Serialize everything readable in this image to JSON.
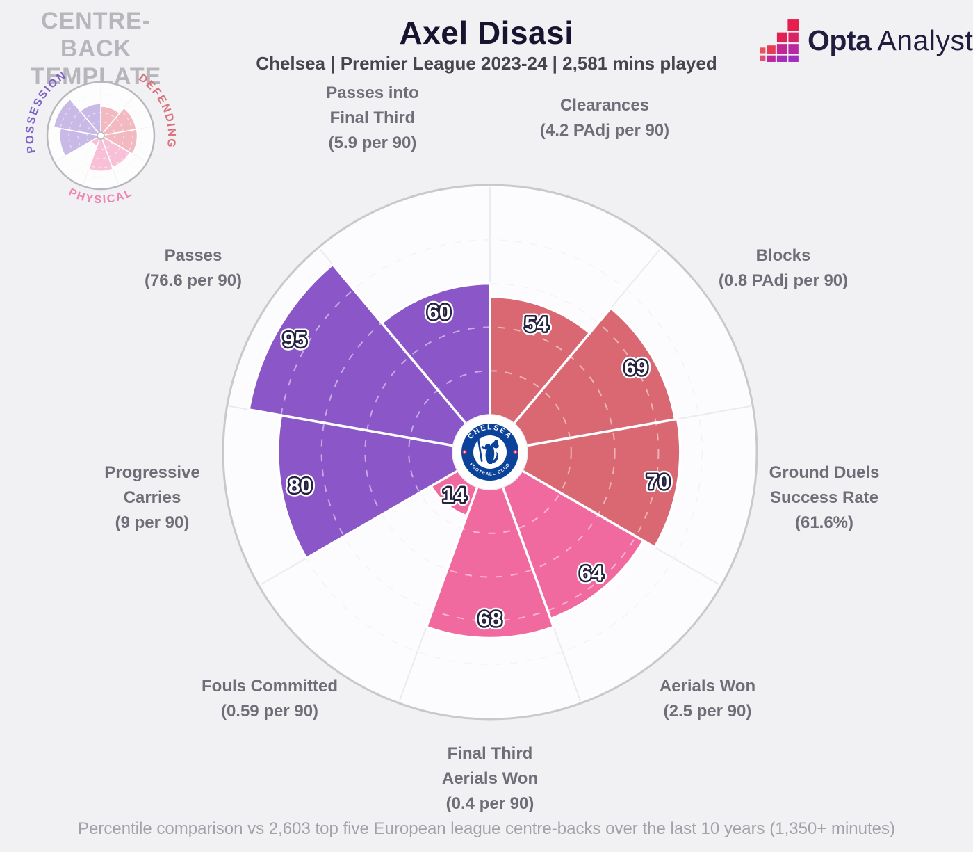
{
  "template_box": {
    "title_line1": "CENTRE-BACK",
    "title_line2": "TEMPLATE",
    "groups": [
      {
        "id": "possession",
        "name": "POSSESSION",
        "label_color": "#7d63c9"
      },
      {
        "id": "defending",
        "name": "DEFENDING",
        "label_color": "#d8737e"
      },
      {
        "id": "physical",
        "name": "PHYSICAL",
        "label_color": "#ef83b1"
      }
    ]
  },
  "header": {
    "player": "Axel Disasi",
    "subtitle": "Chelsea | Premier League 2023-24 | 2,581 mins played"
  },
  "brand": {
    "name_bold": "Opta",
    "name_light": "Analyst"
  },
  "center_badge": {
    "club": "Chelsea FC",
    "text_top": "CHELSEA",
    "text_bottom": "FOOTBALL CLUB",
    "blue": "#0c439a"
  },
  "footer": {
    "note": "Percentile comparison vs 2,603 top five European league centre-backs over the last 10 years (1,350+ minutes)"
  },
  "chart_data": {
    "type": "bar",
    "subtype": "polar-pizza-percentile",
    "scale": [
      0,
      100
    ],
    "gridlines": [
      20,
      40,
      60,
      80,
      100
    ],
    "start_angle_deg": 0,
    "direction": "clockwise",
    "categories": [
      "Clearances",
      "Blocks",
      "Ground Duels Success Rate",
      "Aerials Won",
      "Final Third Aerials Won",
      "Fouls Committed",
      "Progressive Carries",
      "Passes",
      "Passes into Final Third"
    ],
    "values": [
      54,
      69,
      70,
      64,
      68,
      14,
      80,
      95,
      60
    ],
    "slices": [
      {
        "value": 54,
        "group": "defending",
        "label_lines": [
          "Clearances",
          "(4.2 PAdj per 90)"
        ]
      },
      {
        "value": 69,
        "group": "defending",
        "label_lines": [
          "Blocks",
          "(0.8 PAdj per 90)"
        ]
      },
      {
        "value": 70,
        "group": "defending",
        "label_lines": [
          "Ground Duels",
          "Success Rate",
          "(61.6%)"
        ]
      },
      {
        "value": 64,
        "group": "physical",
        "label_lines": [
          "Aerials Won",
          "(2.5 per 90)"
        ]
      },
      {
        "value": 68,
        "group": "physical",
        "label_lines": [
          "Final Third",
          "Aerials Won",
          "(0.4 per 90)"
        ]
      },
      {
        "value": 14,
        "group": "physical",
        "label_lines": [
          "Fouls Committed",
          "(0.59 per 90)"
        ]
      },
      {
        "value": 80,
        "group": "possession",
        "label_lines": [
          "Progressive",
          "Carries",
          "(9 per 90)"
        ]
      },
      {
        "value": 95,
        "group": "possession",
        "label_lines": [
          "Passes",
          "(76.6 per 90)"
        ]
      },
      {
        "value": 60,
        "group": "possession",
        "label_lines": [
          "Passes into",
          "Final Third",
          "(5.9 per 90)"
        ]
      }
    ],
    "group_colors": {
      "possession": "#8a56c8",
      "defending": "#d96873",
      "physical": "#f0699f"
    },
    "group_colors_pale": {
      "possession": "#c9b9e6",
      "defending": "#f2bac0",
      "physical": "#f8c0d7"
    }
  }
}
